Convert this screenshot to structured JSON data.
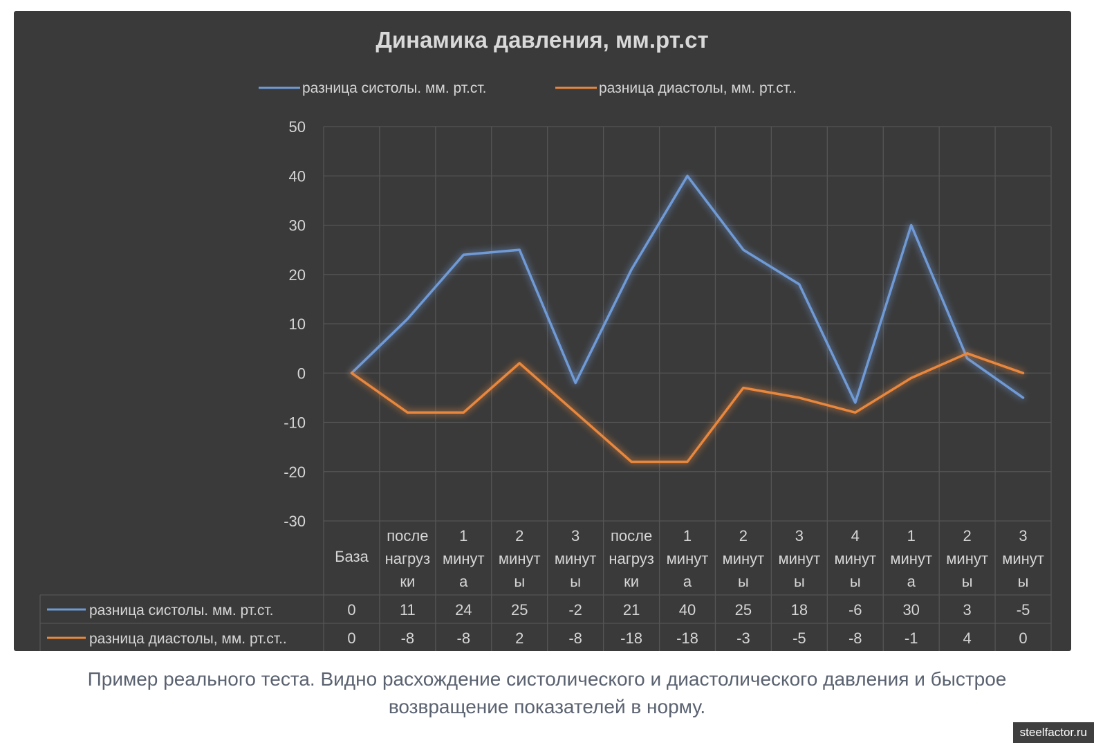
{
  "chart_data": {
    "type": "line",
    "title": "Динамика давления, мм.рт.ст",
    "categories": [
      [
        "База"
      ],
      [
        "после",
        "нагруз",
        "ки"
      ],
      [
        "1",
        "минут",
        "а"
      ],
      [
        "2",
        "минут",
        "ы"
      ],
      [
        "3",
        "минут",
        "ы"
      ],
      [
        "после",
        "нагруз",
        "ки"
      ],
      [
        "1",
        "минут",
        "а"
      ],
      [
        "2",
        "минут",
        "ы"
      ],
      [
        "3",
        "минут",
        "ы"
      ],
      [
        "4",
        "минут",
        "ы"
      ],
      [
        "1",
        "минут",
        "а"
      ],
      [
        "2",
        "минут",
        "ы"
      ],
      [
        "3",
        "минут",
        "ы"
      ]
    ],
    "series": [
      {
        "name": "разница систолы. мм. рт.ст.",
        "color": "#6f9ad6",
        "values": [
          0,
          11,
          24,
          25,
          -2,
          21,
          40,
          25,
          18,
          -6,
          30,
          3,
          -5
        ]
      },
      {
        "name": "разница диастолы, мм. рт.ст..",
        "color": "#e8873d",
        "values": [
          0,
          -8,
          -8,
          2,
          -8,
          -18,
          -18,
          -3,
          -5,
          -8,
          -1,
          4,
          0
        ]
      }
    ],
    "ylim": [
      -30,
      50
    ],
    "yticks": [
      50,
      40,
      30,
      20,
      10,
      0,
      -10,
      -20,
      -30
    ],
    "grid": true,
    "legend": "top",
    "data_table": true
  },
  "caption": {
    "line1": "Пример реального теста. Видно расхождение систолического и диастолического давления и быстрое",
    "line2": "возвращение показателей в норму."
  },
  "watermark": "steelfactor.ru"
}
